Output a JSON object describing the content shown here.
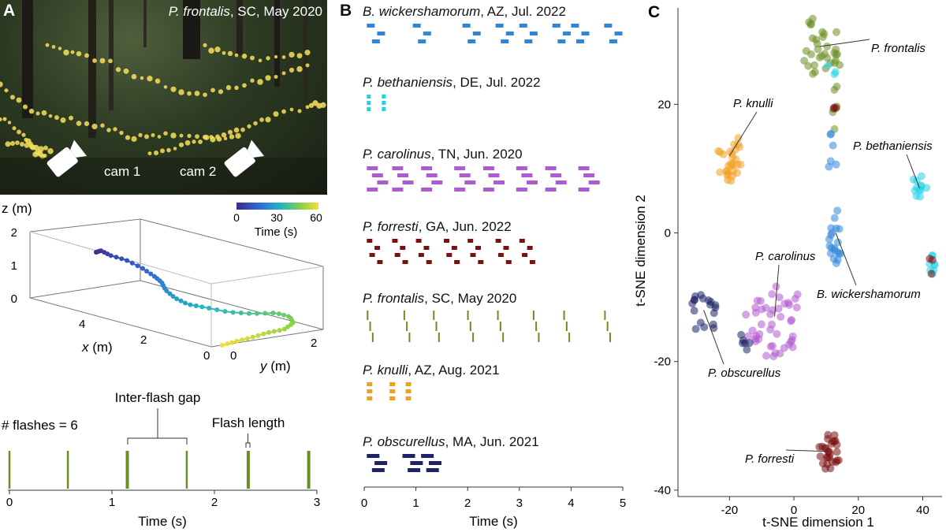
{
  "colors": {
    "wickershamorum": "#2f86d8",
    "bethaniensis": "#22d3e6",
    "carolinus": "#b05ad0",
    "forresti": "#7a1010",
    "frontalis": "#6b8e23",
    "knulli": "#f0a020",
    "obscurellus": "#1c2366"
  },
  "panel_a": {
    "letter": "A",
    "photo": {
      "species": "P. frontalis",
      "meta": ", SC, May 2020",
      "cam1": "cam 1",
      "cam2": "cam 2"
    },
    "trajectory": {
      "z_label": "z (m)",
      "x_label": "x (m)",
      "y_label": "y (m)",
      "z_ticks": [
        "0",
        "1",
        "2"
      ],
      "x_ticks": [
        "0",
        "2",
        "4"
      ],
      "y_ticks": [
        "0",
        "2"
      ],
      "colorbar_label": "Time (s)",
      "colorbar_ticks": [
        "0",
        "30",
        "60"
      ]
    },
    "flash_plot": {
      "count_label": "# flashes = 6",
      "gap_label": "Inter-flash gap",
      "length_label": "Flash length",
      "xlabel": "Time (s)",
      "xticks": [
        "0",
        "1",
        "2",
        "3"
      ]
    }
  },
  "panel_b": {
    "letter": "B",
    "xlabel": "Time (s)",
    "xticks": [
      "0",
      "1",
      "2",
      "3",
      "4",
      "5"
    ],
    "rows": [
      {
        "species": "B. wickershamorum",
        "meta": ", AZ, Jul. 2022",
        "color_key": "wickershamorum"
      },
      {
        "species": "P. bethaniensis",
        "meta": ", DE, Jul. 2022",
        "color_key": "bethaniensis"
      },
      {
        "species": "P. carolinus",
        "meta": ", TN, Jun. 2020",
        "color_key": "carolinus"
      },
      {
        "species": "P. forresti",
        "meta": ", GA, Jun. 2022",
        "color_key": "forresti"
      },
      {
        "species": "P. frontalis",
        "meta": ", SC, May 2020",
        "color_key": "frontalis"
      },
      {
        "species": "P. knulli",
        "meta": ", AZ, Aug. 2021",
        "color_key": "knulli"
      },
      {
        "species": "P. obscurellus",
        "meta": ", MA, Jun. 2021",
        "color_key": "obscurellus"
      }
    ]
  },
  "chart_data": [
    {
      "type": "bar",
      "title": "# flashes = 6",
      "xlabel": "Time (s)",
      "ylabel": "",
      "xlim": [
        0,
        3
      ],
      "flash_times_s": [
        0.0,
        0.57,
        1.15,
        1.73,
        2.33,
        2.92
      ],
      "annotations": [
        "Inter-flash gap",
        "Flash length"
      ]
    },
    {
      "type": "scatter",
      "title": "",
      "xlabel": "t-SNE dimension 1",
      "ylabel": "t-SNE dimension 2",
      "xlim": [
        -36,
        46
      ],
      "ylim": [
        -41,
        35
      ],
      "xticks": [
        "-20",
        "0",
        "20",
        "40"
      ],
      "yticks": [
        "-40",
        "-20",
        "0",
        "20"
      ],
      "legend_annotations": [
        {
          "label": "P. frontalis",
          "color_key": "frontalis",
          "center": [
            8,
            29
          ]
        },
        {
          "label": "P. knulli",
          "color_key": "knulli",
          "center": [
            -20,
            12
          ]
        },
        {
          "label": "P. bethaniensis",
          "color_key": "bethaniensis",
          "center": [
            39,
            7
          ]
        },
        {
          "label": "P. carolinus",
          "color_key": "carolinus",
          "center": [
            -6,
            -13
          ]
        },
        {
          "label": "B. wickershamorum",
          "color_key": "wickershamorum",
          "center": [
            13,
            0
          ]
        },
        {
          "label": "P. obscurellus",
          "color_key": "obscurellus",
          "center": [
            -28,
            -12
          ]
        },
        {
          "label": "P. forresti",
          "color_key": "forresti",
          "center": [
            11,
            -34
          ]
        }
      ]
    }
  ]
}
